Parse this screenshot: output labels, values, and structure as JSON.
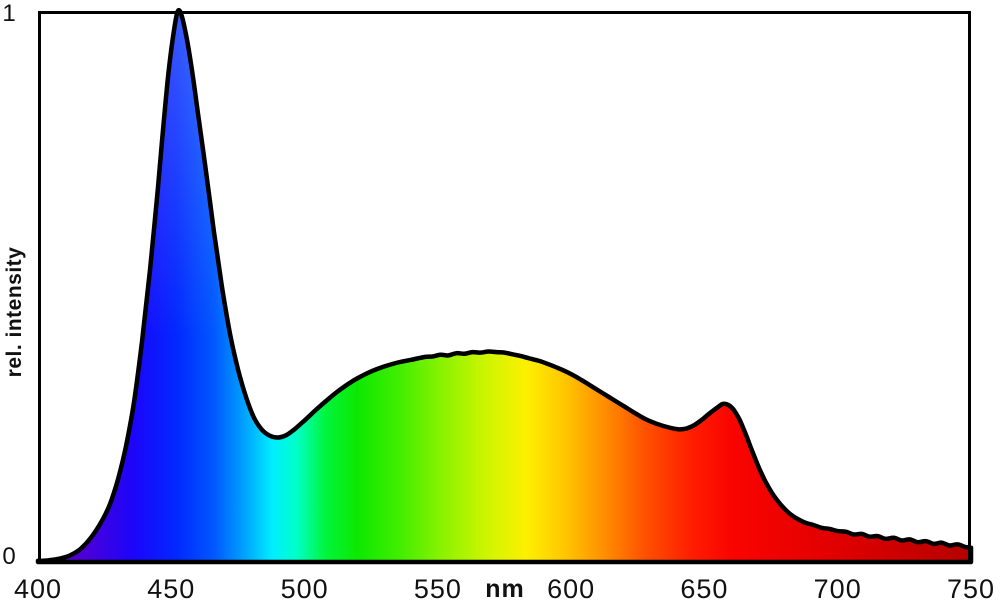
{
  "chart_data": {
    "type": "area",
    "title": "",
    "xlabel": "nm",
    "ylabel": "rel. intensity",
    "xlim": [
      400,
      750
    ],
    "ylim": [
      0,
      1
    ],
    "grid": false,
    "legend": null,
    "x_ticks": [
      "400",
      "450",
      "500",
      "550",
      "600",
      "650",
      "700",
      "750"
    ],
    "y_ticks": [
      "0",
      "1"
    ],
    "description": "White LED emission spectrum: sharp blue peak near 452 nm (rel. intensity 1.0), broad phosphor hump peaking near 570 nm (~0.38), small red bump near 657 nm (~0.29), noisy tail decaying to ~0.03 at 750 nm. Area under curve filled with spectral rainbow gradient.",
    "points": [
      [
        400,
        0.002
      ],
      [
        404,
        0.003
      ],
      [
        408,
        0.006
      ],
      [
        412,
        0.012
      ],
      [
        416,
        0.024
      ],
      [
        420,
        0.045
      ],
      [
        424,
        0.075
      ],
      [
        427,
        0.105
      ],
      [
        430,
        0.15
      ],
      [
        433,
        0.21
      ],
      [
        436,
        0.29
      ],
      [
        439,
        0.4
      ],
      [
        442,
        0.53
      ],
      [
        445,
        0.68
      ],
      [
        447,
        0.79
      ],
      [
        449,
        0.89
      ],
      [
        451,
        0.965
      ],
      [
        452.5,
        1.0
      ],
      [
        454,
        0.99
      ],
      [
        456,
        0.945
      ],
      [
        458,
        0.885
      ],
      [
        460,
        0.815
      ],
      [
        463,
        0.71
      ],
      [
        466,
        0.6
      ],
      [
        469,
        0.5
      ],
      [
        472,
        0.415
      ],
      [
        475,
        0.35
      ],
      [
        478,
        0.3
      ],
      [
        481,
        0.262
      ],
      [
        484,
        0.24
      ],
      [
        487,
        0.229
      ],
      [
        490,
        0.226
      ],
      [
        493,
        0.23
      ],
      [
        496,
        0.24
      ],
      [
        500,
        0.257
      ],
      [
        504,
        0.275
      ],
      [
        508,
        0.292
      ],
      [
        512,
        0.308
      ],
      [
        516,
        0.322
      ],
      [
        520,
        0.334
      ],
      [
        525,
        0.346
      ],
      [
        530,
        0.355
      ],
      [
        535,
        0.362
      ],
      [
        540,
        0.367
      ],
      [
        545,
        0.372
      ],
      [
        548,
        0.373
      ],
      [
        551,
        0.376
      ],
      [
        554,
        0.375
      ],
      [
        557,
        0.379
      ],
      [
        560,
        0.378
      ],
      [
        563,
        0.381
      ],
      [
        566,
        0.38
      ],
      [
        569,
        0.382
      ],
      [
        572,
        0.381
      ],
      [
        575,
        0.38
      ],
      [
        578,
        0.377
      ],
      [
        581,
        0.374
      ],
      [
        584,
        0.37
      ],
      [
        588,
        0.365
      ],
      [
        592,
        0.358
      ],
      [
        596,
        0.35
      ],
      [
        600,
        0.341
      ],
      [
        604,
        0.33
      ],
      [
        608,
        0.318
      ],
      [
        612,
        0.306
      ],
      [
        616,
        0.294
      ],
      [
        620,
        0.282
      ],
      [
        624,
        0.27
      ],
      [
        628,
        0.259
      ],
      [
        632,
        0.251
      ],
      [
        636,
        0.245
      ],
      [
        640,
        0.241
      ],
      [
        643,
        0.242
      ],
      [
        646,
        0.248
      ],
      [
        649,
        0.258
      ],
      [
        652,
        0.27
      ],
      [
        655,
        0.281
      ],
      [
        657,
        0.287
      ],
      [
        659,
        0.285
      ],
      [
        661,
        0.276
      ],
      [
        663,
        0.26
      ],
      [
        665,
        0.238
      ],
      [
        667,
        0.213
      ],
      [
        669,
        0.188
      ],
      [
        671,
        0.165
      ],
      [
        673,
        0.145
      ],
      [
        675,
        0.128
      ],
      [
        677,
        0.114
      ],
      [
        679,
        0.102
      ],
      [
        681,
        0.092
      ],
      [
        683,
        0.084
      ],
      [
        685,
        0.078
      ],
      [
        688,
        0.071
      ],
      [
        691,
        0.067
      ],
      [
        694,
        0.062
      ],
      [
        697,
        0.06
      ],
      [
        700,
        0.056
      ],
      [
        703,
        0.055
      ],
      [
        706,
        0.05
      ],
      [
        709,
        0.051
      ],
      [
        712,
        0.046
      ],
      [
        715,
        0.047
      ],
      [
        718,
        0.042
      ],
      [
        721,
        0.044
      ],
      [
        724,
        0.039
      ],
      [
        727,
        0.041
      ],
      [
        730,
        0.036
      ],
      [
        733,
        0.038
      ],
      [
        736,
        0.033
      ],
      [
        739,
        0.035
      ],
      [
        742,
        0.03
      ],
      [
        745,
        0.032
      ],
      [
        748,
        0.027
      ],
      [
        750,
        0.026
      ]
    ],
    "colors": {
      "line": "#000000",
      "axis": "#000000",
      "background": "#ffffff",
      "highlight_opacity": 0.22,
      "gradient_stops": [
        {
          "at": 400,
          "color": "#5a00a0"
        },
        {
          "at": 418,
          "color": "#4a00d8"
        },
        {
          "at": 436,
          "color": "#1b05fa"
        },
        {
          "at": 452,
          "color": "#0128ff"
        },
        {
          "at": 466,
          "color": "#0058ff"
        },
        {
          "at": 478,
          "color": "#00a6ff"
        },
        {
          "at": 488,
          "color": "#00eeff"
        },
        {
          "at": 497,
          "color": "#00ffc8"
        },
        {
          "at": 508,
          "color": "#00f53c"
        },
        {
          "at": 520,
          "color": "#0ee800"
        },
        {
          "at": 535,
          "color": "#3fee00"
        },
        {
          "at": 552,
          "color": "#8cf200"
        },
        {
          "at": 568,
          "color": "#cdf500"
        },
        {
          "at": 583,
          "color": "#fdf000"
        },
        {
          "at": 597,
          "color": "#ffc800"
        },
        {
          "at": 612,
          "color": "#ff9000"
        },
        {
          "at": 628,
          "color": "#ff5000"
        },
        {
          "at": 645,
          "color": "#ff1e00"
        },
        {
          "at": 660,
          "color": "#fa0400"
        },
        {
          "at": 700,
          "color": "#e00000"
        },
        {
          "at": 750,
          "color": "#b40000"
        }
      ]
    }
  }
}
